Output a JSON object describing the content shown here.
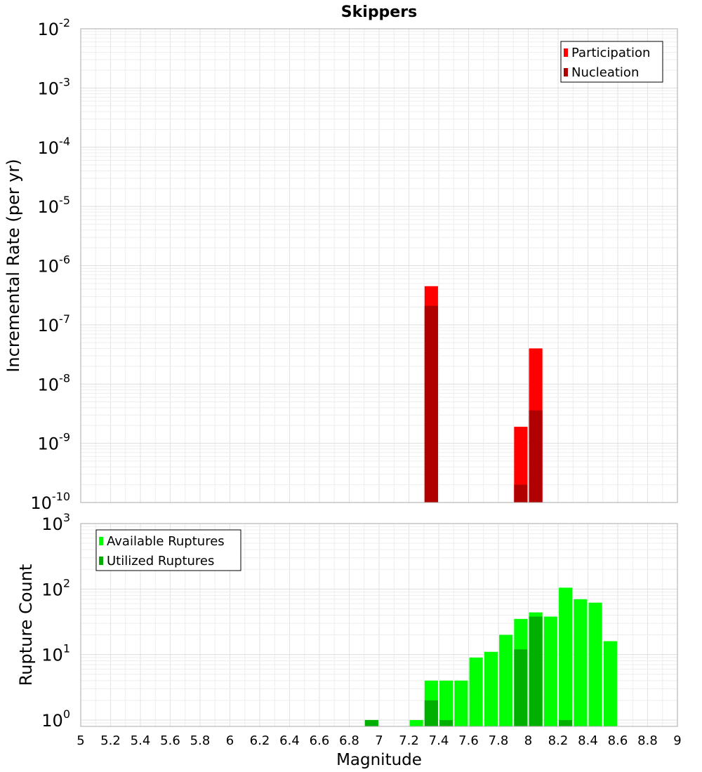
{
  "chart_data": [
    {
      "type": "bar",
      "title": "Skippers",
      "ylabel": "Incremental Rate (per yr)",
      "y_scale": "log",
      "ylim": [
        1e-10,
        0.01
      ],
      "xlim": [
        5,
        9
      ],
      "bar_width": 0.09,
      "grid": true,
      "legend_position": "top-right",
      "y_ticks": [
        {
          "base": "10",
          "exp": "-10",
          "value": 1e-10
        },
        {
          "base": "10",
          "exp": "-9",
          "value": 1e-09
        },
        {
          "base": "10",
          "exp": "-8",
          "value": 1e-08
        },
        {
          "base": "10",
          "exp": "-7",
          "value": 1e-07
        },
        {
          "base": "10",
          "exp": "-6",
          "value": 1e-06
        },
        {
          "base": "10",
          "exp": "-5",
          "value": 1e-05
        },
        {
          "base": "10",
          "exp": "-4",
          "value": 0.0001
        },
        {
          "base": "10",
          "exp": "-3",
          "value": 0.001
        },
        {
          "base": "10",
          "exp": "-2",
          "value": 0.01
        }
      ],
      "series": [
        {
          "name": "Participation",
          "color": "#ff0000",
          "points": [
            {
              "x": 7.35,
              "y": 4.5e-07
            },
            {
              "x": 7.95,
              "y": 1.9e-09
            },
            {
              "x": 8.05,
              "y": 4e-08
            }
          ]
        },
        {
          "name": "Nucleation",
          "color": "#b00000",
          "points": [
            {
              "x": 7.35,
              "y": 2.1e-07
            },
            {
              "x": 7.95,
              "y": 2e-10
            },
            {
              "x": 8.05,
              "y": 3.6e-09
            }
          ]
        }
      ]
    },
    {
      "type": "bar",
      "xlabel": "Magnitude",
      "ylabel": "Rupture Count",
      "y_scale": "log",
      "ylim": [
        0.8,
        1000
      ],
      "xlim": [
        5,
        9
      ],
      "bar_width": 0.09,
      "grid": true,
      "legend_position": "top-left",
      "y_ticks": [
        {
          "base": "10",
          "exp": "0",
          "value": 1
        },
        {
          "base": "10",
          "exp": "1",
          "value": 10
        },
        {
          "base": "10",
          "exp": "2",
          "value": 100
        },
        {
          "base": "10",
          "exp": "3",
          "value": 1000
        }
      ],
      "x_ticks": [
        "5",
        "5.2",
        "5.4",
        "5.6",
        "5.8",
        "6",
        "6.2",
        "6.4",
        "6.6",
        "6.8",
        "7",
        "7.2",
        "7.4",
        "7.6",
        "7.8",
        "8",
        "8.2",
        "8.4",
        "8.6",
        "8.8",
        "9"
      ],
      "series": [
        {
          "name": "Available Ruptures",
          "color": "#00ff00",
          "points": [
            {
              "x": 6.95,
              "y": 1
            },
            {
              "x": 7.25,
              "y": 1
            },
            {
              "x": 7.35,
              "y": 4
            },
            {
              "x": 7.45,
              "y": 4
            },
            {
              "x": 7.55,
              "y": 4
            },
            {
              "x": 7.65,
              "y": 9
            },
            {
              "x": 7.75,
              "y": 11
            },
            {
              "x": 7.85,
              "y": 20
            },
            {
              "x": 7.95,
              "y": 35
            },
            {
              "x": 8.05,
              "y": 44
            },
            {
              "x": 8.15,
              "y": 38
            },
            {
              "x": 8.25,
              "y": 105
            },
            {
              "x": 8.35,
              "y": 70
            },
            {
              "x": 8.45,
              "y": 62
            },
            {
              "x": 8.55,
              "y": 16
            }
          ]
        },
        {
          "name": "Utilized Ruptures",
          "color": "#00b000",
          "points": [
            {
              "x": 6.95,
              "y": 1
            },
            {
              "x": 7.35,
              "y": 2
            },
            {
              "x": 7.45,
              "y": 1
            },
            {
              "x": 7.95,
              "y": 12
            },
            {
              "x": 8.05,
              "y": 38
            },
            {
              "x": 8.25,
              "y": 1
            }
          ]
        }
      ]
    }
  ]
}
